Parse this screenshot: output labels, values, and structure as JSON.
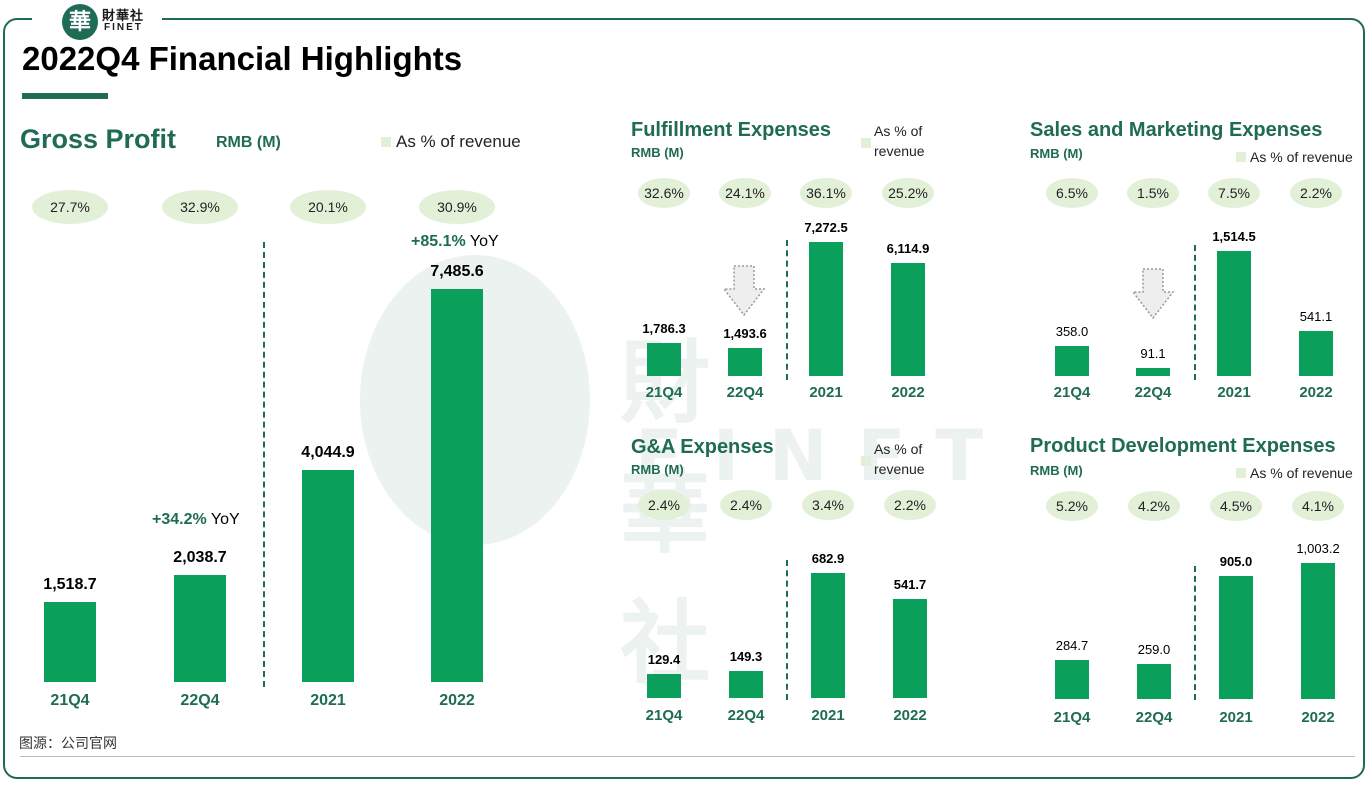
{
  "logo": {
    "emblem": "華",
    "cn": "財華社",
    "en": "FINET"
  },
  "page_title": "2022Q4 Financial Highlights",
  "source": "图源：公司官网",
  "colors": {
    "accent": "#1f6b55",
    "bar": "#0aa05b",
    "pill": "#e3f0d8"
  },
  "chart_data": [
    {
      "id": "gross",
      "type": "bar",
      "title": "Gross Profit",
      "unit": "RMB (M)",
      "legend": "As % of revenue",
      "categories": [
        "21Q4",
        "22Q4",
        "2021",
        "2022"
      ],
      "values": [
        1518.7,
        2038.7,
        4044.9,
        7485.6
      ],
      "value_labels": [
        "1,518.7",
        "2,038.7",
        "4,044.9",
        "7,485.6"
      ],
      "pct_of_revenue": [
        "27.7%",
        "32.9%",
        "20.1%",
        "30.9%"
      ],
      "yoy": [
        {
          "value": "+34.2%",
          "suffix": " YoY"
        },
        {
          "value": "+85.1%",
          "suffix": " YoY"
        }
      ]
    },
    {
      "id": "fulfill",
      "type": "bar",
      "title": "Fulfillment Expenses",
      "unit": "RMB (M)",
      "legend": [
        "As % of",
        "revenue"
      ],
      "categories": [
        "21Q4",
        "22Q4",
        "2021",
        "2022"
      ],
      "values": [
        1786.3,
        1493.6,
        7272.5,
        6114.9
      ],
      "value_labels": [
        "1,786.3",
        "1,493.6",
        "7,272.5",
        "6,114.9"
      ],
      "pct_of_revenue": [
        "32.6%",
        "24.1%",
        "36.1%",
        "25.2%"
      ]
    },
    {
      "id": "sales",
      "type": "bar",
      "title": "Sales and Marketing Expenses",
      "unit": "RMB (M)",
      "legend": "As % of revenue",
      "categories": [
        "21Q4",
        "22Q4",
        "2021",
        "2022"
      ],
      "values": [
        358.0,
        91.1,
        1514.5,
        541.1
      ],
      "value_labels": [
        "358.0",
        "91.1",
        "1,514.5",
        "541.1"
      ],
      "pct_of_revenue": [
        "6.5%",
        "1.5%",
        "7.5%",
        "2.2%"
      ]
    },
    {
      "id": "ga",
      "type": "bar",
      "title": "G&A Expenses",
      "unit": "RMB (M)",
      "legend": [
        "As % of",
        "revenue"
      ],
      "categories": [
        "21Q4",
        "22Q4",
        "2021",
        "2022"
      ],
      "values": [
        129.4,
        149.3,
        682.9,
        541.7
      ],
      "value_labels": [
        "129.4",
        "149.3",
        "682.9",
        "541.7"
      ],
      "pct_of_revenue": [
        "2.4%",
        "2.4%",
        "3.4%",
        "2.2%"
      ]
    },
    {
      "id": "pd",
      "type": "bar",
      "title": "Product Development Expenses",
      "unit": "RMB (M)",
      "legend": "As % of revenue",
      "categories": [
        "21Q4",
        "22Q4",
        "2021",
        "2022"
      ],
      "values": [
        284.7,
        259.0,
        905.0,
        1003.2
      ],
      "value_labels": [
        "284.7",
        "259.0",
        "905.0",
        "1,003.2"
      ],
      "pct_of_revenue": [
        "5.2%",
        "4.2%",
        "4.5%",
        "4.1%"
      ]
    }
  ]
}
